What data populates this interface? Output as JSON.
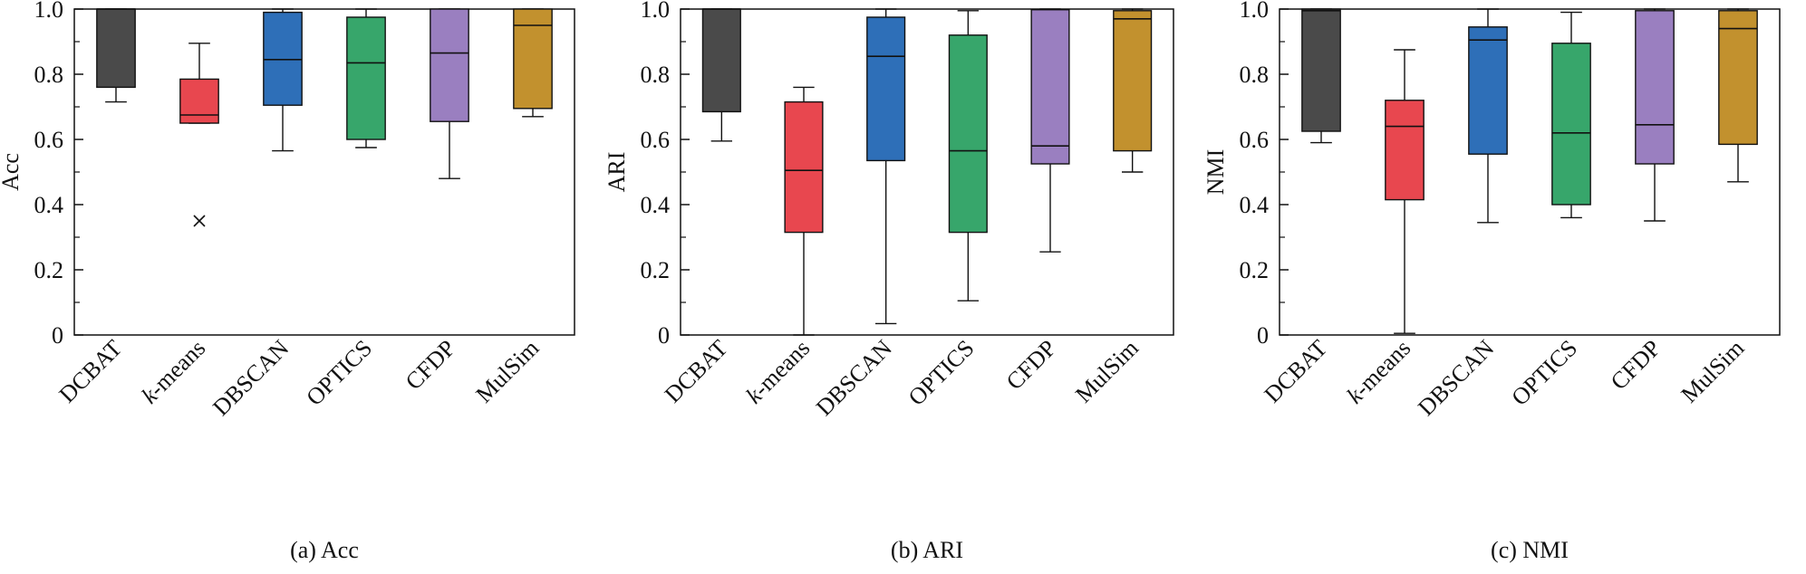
{
  "figure": {
    "y_ticks": [
      "0",
      "0.2",
      "0.4",
      "0.6",
      "0.8",
      "1.0"
    ]
  },
  "colors": {
    "DCBAT": "#4a4a4a",
    "k-means": "#e8474f",
    "DBSCAN": "#2e6fb8",
    "OPTICS": "#37a66b",
    "CFDP": "#9a7fc0",
    "MulSim": "#c2912e"
  },
  "chart_data": [
    {
      "type": "box",
      "caption": "(a) Acc",
      "ylabel": "Acc",
      "ylim": [
        0,
        1.0
      ],
      "yticks": [
        0,
        0.2,
        0.4,
        0.6,
        0.8,
        1.0
      ],
      "categories": [
        "DCBAT",
        "k-means",
        "DBSCAN",
        "OPTICS",
        "CFDP",
        "MulSim"
      ],
      "category_labels": [
        {
          "prefix": "",
          "italic": "",
          "rest": "DCBAT"
        },
        {
          "prefix": "",
          "italic": "k",
          "rest": "-means"
        },
        {
          "prefix": "",
          "italic": "",
          "rest": "DBSCAN"
        },
        {
          "prefix": "",
          "italic": "",
          "rest": "OPTICS"
        },
        {
          "prefix": "",
          "italic": "",
          "rest": "CFDP"
        },
        {
          "prefix": "",
          "italic": "",
          "rest": "MulSim"
        }
      ],
      "boxes": [
        {
          "min": 0.715,
          "q1": 0.76,
          "median": 1.0,
          "q3": 1.0,
          "max": 1.0
        },
        {
          "min": 0.65,
          "q1": 0.65,
          "median": 0.675,
          "q3": 0.785,
          "max": 0.895
        },
        {
          "min": 0.565,
          "q1": 0.705,
          "median": 0.845,
          "q3": 0.99,
          "max": 1.0
        },
        {
          "min": 0.575,
          "q1": 0.6,
          "median": 0.835,
          "q3": 0.975,
          "max": 1.0
        },
        {
          "min": 0.48,
          "q1": 0.655,
          "median": 0.865,
          "q3": 1.0,
          "max": 1.0
        },
        {
          "min": 0.67,
          "q1": 0.695,
          "median": 0.95,
          "q3": 1.0,
          "max": 1.0
        }
      ],
      "outliers": [
        {
          "category": "k-means",
          "value": 0.35
        }
      ]
    },
    {
      "type": "box",
      "caption": "(b) ARI",
      "ylabel": "ARI",
      "ylim": [
        0,
        1.0
      ],
      "yticks": [
        0,
        0.2,
        0.4,
        0.6,
        0.8,
        1.0
      ],
      "categories": [
        "DCBAT",
        "k-means",
        "DBSCAN",
        "OPTICS",
        "CFDP",
        "MulSim"
      ],
      "category_labels": [
        {
          "prefix": "",
          "italic": "",
          "rest": "DCBAT"
        },
        {
          "prefix": "",
          "italic": "k",
          "rest": "-means"
        },
        {
          "prefix": "",
          "italic": "",
          "rest": "DBSCAN"
        },
        {
          "prefix": "",
          "italic": "",
          "rest": "OPTICS"
        },
        {
          "prefix": "",
          "italic": "",
          "rest": "CFDP"
        },
        {
          "prefix": "",
          "italic": "",
          "rest": "MulSim"
        }
      ],
      "boxes": [
        {
          "min": 0.595,
          "q1": 0.685,
          "median": 1.0,
          "q3": 1.0,
          "max": 1.0
        },
        {
          "min": 0.0,
          "q1": 0.315,
          "median": 0.505,
          "q3": 0.715,
          "max": 0.76
        },
        {
          "min": 0.035,
          "q1": 0.535,
          "median": 0.855,
          "q3": 0.975,
          "max": 1.0
        },
        {
          "min": 0.105,
          "q1": 0.315,
          "median": 0.565,
          "q3": 0.92,
          "max": 0.995
        },
        {
          "min": 0.255,
          "q1": 0.525,
          "median": 0.58,
          "q3": 0.998,
          "max": 1.0
        },
        {
          "min": 0.5,
          "q1": 0.565,
          "median": 0.97,
          "q3": 0.995,
          "max": 1.0
        }
      ],
      "outliers": []
    },
    {
      "type": "box",
      "caption": "(c) NMI",
      "ylabel": "NMI",
      "ylim": [
        0,
        1.0
      ],
      "yticks": [
        0,
        0.2,
        0.4,
        0.6,
        0.8,
        1.0
      ],
      "categories": [
        "DCBAT",
        "k-means",
        "DBSCAN",
        "OPTICS",
        "CFDP",
        "MulSim"
      ],
      "category_labels": [
        {
          "prefix": "",
          "italic": "",
          "rest": "DCBAT"
        },
        {
          "prefix": "",
          "italic": "k",
          "rest": "-means"
        },
        {
          "prefix": "",
          "italic": "",
          "rest": "DBSCAN"
        },
        {
          "prefix": "",
          "italic": "",
          "rest": "OPTICS"
        },
        {
          "prefix": "",
          "italic": "",
          "rest": "CFDP"
        },
        {
          "prefix": "",
          "italic": "",
          "rest": "MulSim"
        }
      ],
      "boxes": [
        {
          "min": 0.59,
          "q1": 0.625,
          "median": 0.995,
          "q3": 1.0,
          "max": 1.0
        },
        {
          "min": 0.005,
          "q1": 0.415,
          "median": 0.64,
          "q3": 0.72,
          "max": 0.875
        },
        {
          "min": 0.345,
          "q1": 0.555,
          "median": 0.905,
          "q3": 0.945,
          "max": 1.0
        },
        {
          "min": 0.36,
          "q1": 0.4,
          "median": 0.62,
          "q3": 0.895,
          "max": 0.99
        },
        {
          "min": 0.35,
          "q1": 0.525,
          "median": 0.645,
          "q3": 0.995,
          "max": 1.0
        },
        {
          "min": 0.47,
          "q1": 0.585,
          "median": 0.94,
          "q3": 0.995,
          "max": 1.0
        }
      ],
      "outliers": []
    }
  ]
}
